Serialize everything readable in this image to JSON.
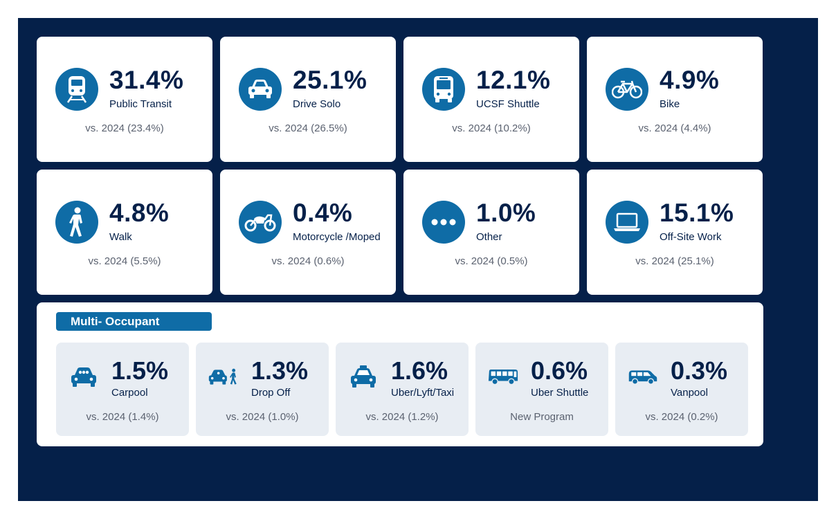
{
  "colors": {
    "background": "#052049",
    "accent": "#0f6ca6",
    "card": "#ffffff",
    "subcard": "#e8edf3"
  },
  "modes": [
    {
      "icon": "train-icon",
      "percent": "31.4%",
      "label": "Public Transit",
      "comparison": "vs. 2024 (23.4%)"
    },
    {
      "icon": "car-icon",
      "percent": "25.1%",
      "label": "Drive Solo",
      "comparison": "vs. 2024 (26.5%)"
    },
    {
      "icon": "bus-icon",
      "percent": "12.1%",
      "label": "UCSF Shuttle",
      "comparison": "vs. 2024 (10.2%)"
    },
    {
      "icon": "bike-icon",
      "percent": "4.9%",
      "label": "Bike",
      "comparison": "vs. 2024 (4.4%)"
    },
    {
      "icon": "walk-icon",
      "percent": "4.8%",
      "label": "Walk",
      "comparison": "vs. 2024 (5.5%)"
    },
    {
      "icon": "motorcycle-icon",
      "percent": "0.4%",
      "label": "Motorcycle /Moped",
      "comparison": "vs. 2024 (0.6%)"
    },
    {
      "icon": "ellipsis-icon",
      "percent": "1.0%",
      "label": "Other",
      "comparison": "vs. 2024 (0.5%)"
    },
    {
      "icon": "laptop-icon",
      "percent": "15.1%",
      "label": "Off-Site Work",
      "comparison": "vs. 2024 (25.1%)"
    }
  ],
  "multi_occupant": {
    "title": "Multi- Occupant",
    "items": [
      {
        "icon": "carpool-icon",
        "percent": "1.5%",
        "label": "Carpool",
        "comparison": "vs. 2024 (1.4%)"
      },
      {
        "icon": "drop-off-icon",
        "percent": "1.3%",
        "label": "Drop Off",
        "comparison": "vs. 2024 (1.0%)"
      },
      {
        "icon": "taxi-icon",
        "percent": "1.6%",
        "label": "Uber/Lyft/Taxi",
        "comparison": "vs. 2024 (1.2%)"
      },
      {
        "icon": "shuttle-bus-icon",
        "percent": "0.6%",
        "label": "Uber Shuttle",
        "comparison": "New Program"
      },
      {
        "icon": "van-icon",
        "percent": "0.3%",
        "label": "Vanpool",
        "comparison": "vs. 2024 (0.2%)"
      }
    ]
  }
}
